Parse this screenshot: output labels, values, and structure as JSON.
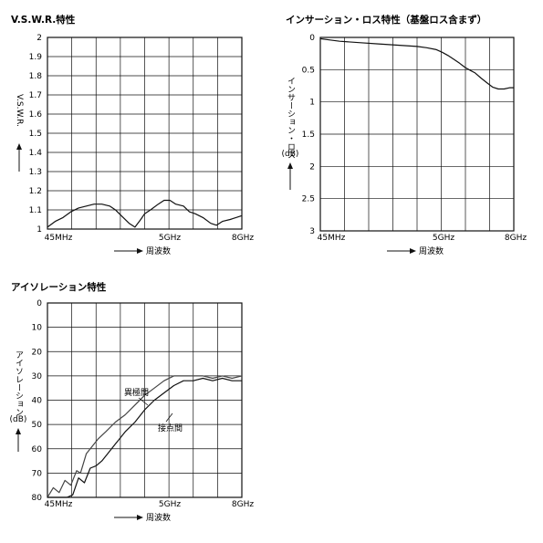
{
  "chart_data": [
    {
      "id": "vswr",
      "type": "line",
      "title": "V.S.W.R.特性",
      "ylabel": "V.S.W.R.",
      "xlabel": "周波数",
      "x_tick_labels": [
        "45MHz",
        "5GHz",
        "8GHz"
      ],
      "x_range_label": [
        "45MHz",
        "8GHz"
      ],
      "ylim": [
        1,
        2
      ],
      "yticks": [
        2,
        1.9,
        1.8,
        1.7,
        1.6,
        1.5,
        1.4,
        1.3,
        1.2,
        1.1,
        1
      ],
      "ytick_labels": [
        "2",
        "1.9",
        "1.8",
        "1.7",
        "1.6",
        "1.5",
        "1.4",
        "1.3",
        "1.2",
        "1.1",
        "1"
      ],
      "grid": true,
      "series": [
        {
          "x": [
            0,
            0.04,
            0.08,
            0.12,
            0.16,
            0.2,
            0.24,
            0.28,
            0.32,
            0.35,
            0.38,
            0.42,
            0.45,
            0.48,
            0.5,
            0.53,
            0.57,
            0.6,
            0.63,
            0.66,
            0.7,
            0.73,
            0.76,
            0.8,
            0.84,
            0.87,
            0.9,
            0.94,
            0.97,
            1.0
          ],
          "y": [
            1.01,
            1.04,
            1.06,
            1.09,
            1.11,
            1.12,
            1.13,
            1.13,
            1.12,
            1.1,
            1.07,
            1.03,
            1.01,
            1.05,
            1.08,
            1.1,
            1.13,
            1.15,
            1.15,
            1.13,
            1.12,
            1.09,
            1.08,
            1.06,
            1.03,
            1.02,
            1.04,
            1.05,
            1.06,
            1.07
          ]
        }
      ]
    },
    {
      "id": "insertion",
      "type": "line",
      "title": "インサーション・ロス特性（基盤ロス含まず）",
      "ylabel": "インサーション・ロス",
      "yunit": "(dB)",
      "xlabel": "周波数",
      "x_tick_labels": [
        "45MHz",
        "5GHz",
        "8GHz"
      ],
      "ylim": [
        0,
        3
      ],
      "yticks": [
        0,
        0.5,
        1,
        1.5,
        2,
        2.5,
        3
      ],
      "ytick_labels": [
        "0",
        "0.5",
        "1",
        "1.5",
        "2",
        "2.5",
        "3"
      ],
      "grid": true,
      "series": [
        {
          "x": [
            0,
            0.05,
            0.1,
            0.2,
            0.3,
            0.4,
            0.5,
            0.55,
            0.6,
            0.63,
            0.66,
            0.69,
            0.72,
            0.75,
            0.78,
            0.8,
            0.83,
            0.86,
            0.89,
            0.92,
            0.95,
            0.98,
            1.0
          ],
          "y": [
            0.02,
            0.04,
            0.06,
            0.08,
            0.1,
            0.12,
            0.14,
            0.16,
            0.19,
            0.23,
            0.28,
            0.34,
            0.4,
            0.47,
            0.52,
            0.55,
            0.63,
            0.7,
            0.77,
            0.8,
            0.8,
            0.78,
            0.78
          ]
        }
      ]
    },
    {
      "id": "isolation",
      "type": "line",
      "title": "アイソレーション特性",
      "ylabel": "アイソレーション",
      "yunit": "(dB)",
      "xlabel": "周波数",
      "x_tick_labels": [
        "45MHz",
        "5GHz",
        "8GHz"
      ],
      "ylim": [
        0,
        80
      ],
      "yticks": [
        0,
        10,
        20,
        30,
        40,
        50,
        60,
        70,
        80
      ],
      "ytick_labels": [
        "0",
        "10",
        "20",
        "30",
        "40",
        "50",
        "60",
        "70",
        "80"
      ],
      "grid": true,
      "series": [
        {
          "name": "異極間",
          "x": [
            0,
            0.03,
            0.06,
            0.09,
            0.12,
            0.15,
            0.17,
            0.2,
            0.23,
            0.26,
            0.3,
            0.35,
            0.4,
            0.45,
            0.5,
            0.55,
            0.6,
            0.65,
            0.7,
            0.75,
            0.8,
            0.85,
            0.9,
            0.95,
            1.0
          ],
          "y": [
            80,
            76,
            78,
            73,
            75,
            69,
            70,
            62,
            59,
            56,
            53,
            49,
            46,
            42,
            38,
            35,
            32,
            30,
            30,
            30,
            30,
            31,
            30,
            31,
            30
          ]
        },
        {
          "name": "接点間",
          "x": [
            0,
            0.05,
            0.1,
            0.13,
            0.16,
            0.19,
            0.22,
            0.25,
            0.28,
            0.31,
            0.35,
            0.4,
            0.45,
            0.5,
            0.55,
            0.6,
            0.65,
            0.7,
            0.75,
            0.8,
            0.85,
            0.9,
            0.95,
            1.0
          ],
          "y": [
            80,
            80,
            80,
            79,
            72,
            74,
            68,
            67,
            65,
            62,
            58,
            53,
            49,
            44,
            40,
            37,
            34,
            32,
            32,
            31,
            32,
            31,
            32,
            32
          ]
        }
      ]
    }
  ]
}
